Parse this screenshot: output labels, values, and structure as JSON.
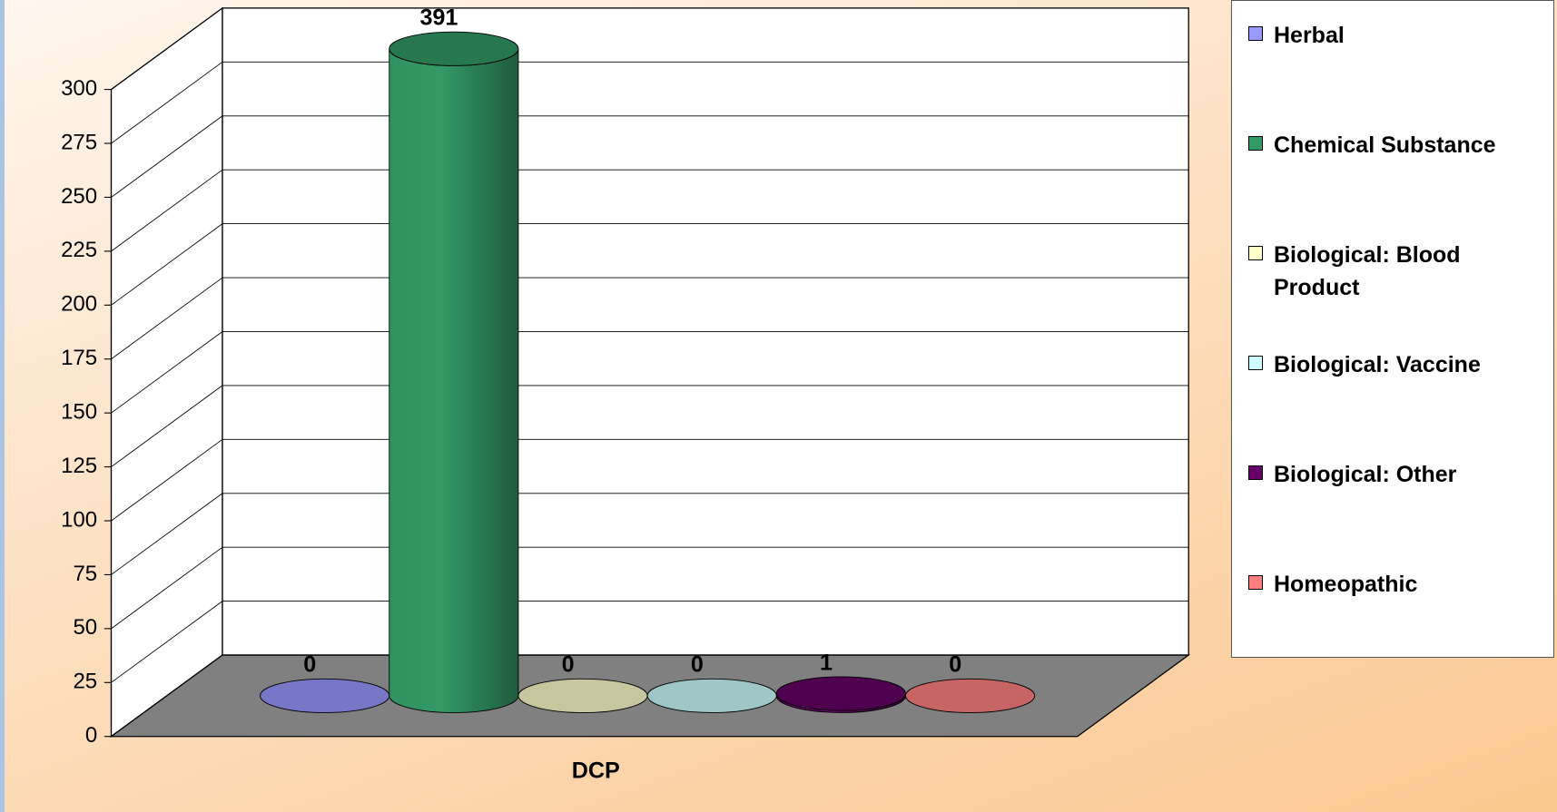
{
  "chart_data": {
    "type": "bar3d",
    "categories": [
      "DCP"
    ],
    "series": [
      {
        "name": "Herbal",
        "color": "#9999ff",
        "values": [
          0
        ]
      },
      {
        "name": "Chemical Substance",
        "color": "#339966",
        "values": [
          391
        ]
      },
      {
        "name": "Biological: Blood Product",
        "color": "#ffffcc",
        "values": [
          0
        ]
      },
      {
        "name": "Biological: Vaccine",
        "color": "#ccffff",
        "values": [
          0
        ]
      },
      {
        "name": "Biological: Other",
        "color": "#660066",
        "values": [
          1
        ]
      },
      {
        "name": "Homeopathic",
        "color": "#ff8080",
        "values": [
          0
        ]
      }
    ],
    "ylim": [
      0,
      300
    ],
    "yticks": [
      0,
      25,
      50,
      75,
      100,
      125,
      150,
      175,
      200,
      225,
      250,
      275,
      300
    ],
    "grid": true,
    "legend": "right"
  }
}
